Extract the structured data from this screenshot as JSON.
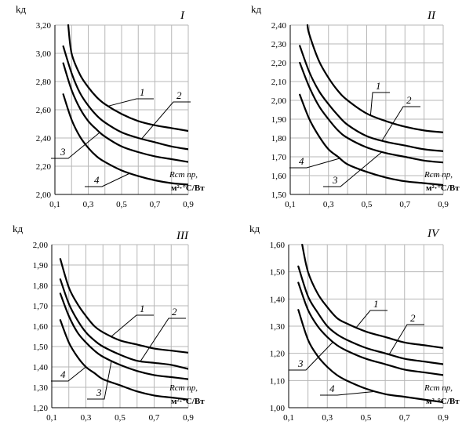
{
  "chart_data": [
    {
      "type": "line",
      "title": "I",
      "ylabel": "kд",
      "xlabel": "Rст пр,",
      "xunit": "м²·°С/Вт",
      "xlim": [
        0.1,
        0.9
      ],
      "ylim": [
        2.0,
        3.2
      ],
      "xticks": [
        "0,1",
        "0,3",
        "0,5",
        "0,7",
        "0,9"
      ],
      "yticks": [
        "2,00",
        "2,20",
        "2,40",
        "2,60",
        "2,80",
        "3,00",
        "3,20"
      ],
      "grid": true,
      "series": [
        {
          "name": "1",
          "x": [
            0.18,
            0.2,
            0.25,
            0.3,
            0.35,
            0.4,
            0.5,
            0.6,
            0.7,
            0.8,
            0.9
          ],
          "y": [
            3.2,
            3.0,
            2.85,
            2.76,
            2.69,
            2.64,
            2.57,
            2.52,
            2.49,
            2.47,
            2.45
          ]
        },
        {
          "name": "2",
          "x": [
            0.15,
            0.2,
            0.25,
            0.3,
            0.35,
            0.4,
            0.5,
            0.6,
            0.7,
            0.8,
            0.9
          ],
          "y": [
            3.05,
            2.86,
            2.72,
            2.63,
            2.56,
            2.51,
            2.44,
            2.4,
            2.37,
            2.34,
            2.32
          ]
        },
        {
          "name": "3",
          "x": [
            0.15,
            0.2,
            0.25,
            0.3,
            0.35,
            0.4,
            0.5,
            0.6,
            0.7,
            0.8,
            0.9
          ],
          "y": [
            2.93,
            2.74,
            2.61,
            2.52,
            2.46,
            2.41,
            2.34,
            2.3,
            2.27,
            2.25,
            2.23
          ]
        },
        {
          "name": "4",
          "x": [
            0.15,
            0.2,
            0.25,
            0.3,
            0.35,
            0.4,
            0.5,
            0.6,
            0.7,
            0.8,
            0.9
          ],
          "y": [
            2.71,
            2.53,
            2.41,
            2.33,
            2.27,
            2.23,
            2.17,
            2.13,
            2.1,
            2.08,
            2.07
          ]
        }
      ]
    },
    {
      "type": "line",
      "title": "II",
      "ylabel": "kд",
      "xlabel": "Rст пр,",
      "xunit": "м²·°С/Вт",
      "xlim": [
        0.1,
        0.9
      ],
      "ylim": [
        1.5,
        2.4
      ],
      "xticks": [
        "0,1",
        "0,3",
        "0,5",
        "0,7",
        "0,9"
      ],
      "yticks": [
        "1,50",
        "1,60",
        "1,70",
        "1,80",
        "1,90",
        "2,00",
        "2,10",
        "2,20",
        "2,30",
        "2,40"
      ],
      "grid": true,
      "series": [
        {
          "name": "1",
          "x": [
            0.19,
            0.2,
            0.25,
            0.3,
            0.35,
            0.4,
            0.5,
            0.6,
            0.7,
            0.8,
            0.9
          ],
          "y": [
            2.4,
            2.35,
            2.21,
            2.12,
            2.05,
            2.0,
            1.93,
            1.89,
            1.86,
            1.84,
            1.83
          ]
        },
        {
          "name": "2",
          "x": [
            0.15,
            0.2,
            0.25,
            0.3,
            0.35,
            0.4,
            0.5,
            0.6,
            0.7,
            0.8,
            0.9
          ],
          "y": [
            2.29,
            2.15,
            2.05,
            1.98,
            1.92,
            1.87,
            1.81,
            1.78,
            1.76,
            1.74,
            1.73
          ]
        },
        {
          "name": "3",
          "x": [
            0.15,
            0.2,
            0.25,
            0.3,
            0.35,
            0.4,
            0.5,
            0.6,
            0.7,
            0.8,
            0.9
          ],
          "y": [
            2.2,
            2.07,
            1.97,
            1.9,
            1.84,
            1.8,
            1.75,
            1.72,
            1.7,
            1.68,
            1.67
          ]
        },
        {
          "name": "4",
          "x": [
            0.15,
            0.2,
            0.25,
            0.3,
            0.35,
            0.4,
            0.5,
            0.6,
            0.7,
            0.8,
            0.9
          ],
          "y": [
            2.03,
            1.9,
            1.81,
            1.74,
            1.7,
            1.66,
            1.62,
            1.59,
            1.57,
            1.56,
            1.55
          ]
        }
      ]
    },
    {
      "type": "line",
      "title": "III",
      "ylabel": "kд",
      "xlabel": "Rст пр,",
      "xunit": "м²·°С/Вт",
      "xlim": [
        0.1,
        0.9
      ],
      "ylim": [
        1.2,
        2.0
      ],
      "xticks": [
        "0,1",
        "0,3",
        "0,5",
        "0,7",
        "0,9"
      ],
      "yticks": [
        "1,20",
        "1,30",
        "1,40",
        "1,50",
        "1,60",
        "1,70",
        "1,80",
        "1,90",
        "2,00"
      ],
      "grid": true,
      "series": [
        {
          "name": "1",
          "x": [
            0.15,
            0.2,
            0.25,
            0.3,
            0.35,
            0.4,
            0.5,
            0.6,
            0.7,
            0.8,
            0.9
          ],
          "y": [
            1.93,
            1.79,
            1.71,
            1.65,
            1.6,
            1.57,
            1.53,
            1.51,
            1.49,
            1.48,
            1.47
          ]
        },
        {
          "name": "2",
          "x": [
            0.15,
            0.2,
            0.25,
            0.3,
            0.35,
            0.4,
            0.5,
            0.6,
            0.7,
            0.8,
            0.9
          ],
          "y": [
            1.83,
            1.71,
            1.63,
            1.57,
            1.53,
            1.5,
            1.46,
            1.43,
            1.42,
            1.41,
            1.39
          ]
        },
        {
          "name": "3",
          "x": [
            0.15,
            0.2,
            0.25,
            0.3,
            0.35,
            0.4,
            0.5,
            0.6,
            0.7,
            0.8,
            0.9
          ],
          "y": [
            1.76,
            1.65,
            1.57,
            1.52,
            1.48,
            1.45,
            1.41,
            1.38,
            1.36,
            1.35,
            1.34
          ]
        },
        {
          "name": "4",
          "x": [
            0.15,
            0.2,
            0.25,
            0.3,
            0.35,
            0.4,
            0.5,
            0.6,
            0.7,
            0.8,
            0.9
          ],
          "y": [
            1.63,
            1.52,
            1.45,
            1.4,
            1.37,
            1.34,
            1.31,
            1.28,
            1.26,
            1.25,
            1.24
          ]
        }
      ]
    },
    {
      "type": "line",
      "title": "IV",
      "ylabel": "kд",
      "xlabel": "Rст пр,",
      "xunit": "м²·°С/Вт",
      "xlim": [
        0.1,
        0.9
      ],
      "ylim": [
        1.0,
        1.6
      ],
      "xticks": [
        "0,1",
        "0,3",
        "0,5",
        "0,7",
        "0,9"
      ],
      "yticks": [
        "1,00",
        "1,10",
        "1,20",
        "1,30",
        "1,40",
        "1,50",
        "1,60"
      ],
      "grid": true,
      "series": [
        {
          "name": "1",
          "x": [
            0.17,
            0.2,
            0.25,
            0.3,
            0.35,
            0.4,
            0.5,
            0.6,
            0.7,
            0.8,
            0.9
          ],
          "y": [
            1.6,
            1.5,
            1.42,
            1.37,
            1.33,
            1.31,
            1.28,
            1.26,
            1.24,
            1.23,
            1.22
          ]
        },
        {
          "name": "2",
          "x": [
            0.15,
            0.2,
            0.25,
            0.3,
            0.35,
            0.4,
            0.5,
            0.6,
            0.7,
            0.8,
            0.9
          ],
          "y": [
            1.52,
            1.41,
            1.35,
            1.3,
            1.27,
            1.25,
            1.22,
            1.2,
            1.18,
            1.17,
            1.16
          ]
        },
        {
          "name": "3",
          "x": [
            0.15,
            0.2,
            0.25,
            0.3,
            0.35,
            0.4,
            0.5,
            0.6,
            0.7,
            0.8,
            0.9
          ],
          "y": [
            1.46,
            1.36,
            1.3,
            1.26,
            1.23,
            1.21,
            1.18,
            1.16,
            1.14,
            1.13,
            1.12
          ]
        },
        {
          "name": "4",
          "x": [
            0.15,
            0.2,
            0.25,
            0.3,
            0.35,
            0.4,
            0.5,
            0.6,
            0.7,
            0.8,
            0.9
          ],
          "y": [
            1.36,
            1.25,
            1.19,
            1.15,
            1.12,
            1.1,
            1.07,
            1.05,
            1.04,
            1.03,
            1.02
          ]
        }
      ]
    }
  ]
}
